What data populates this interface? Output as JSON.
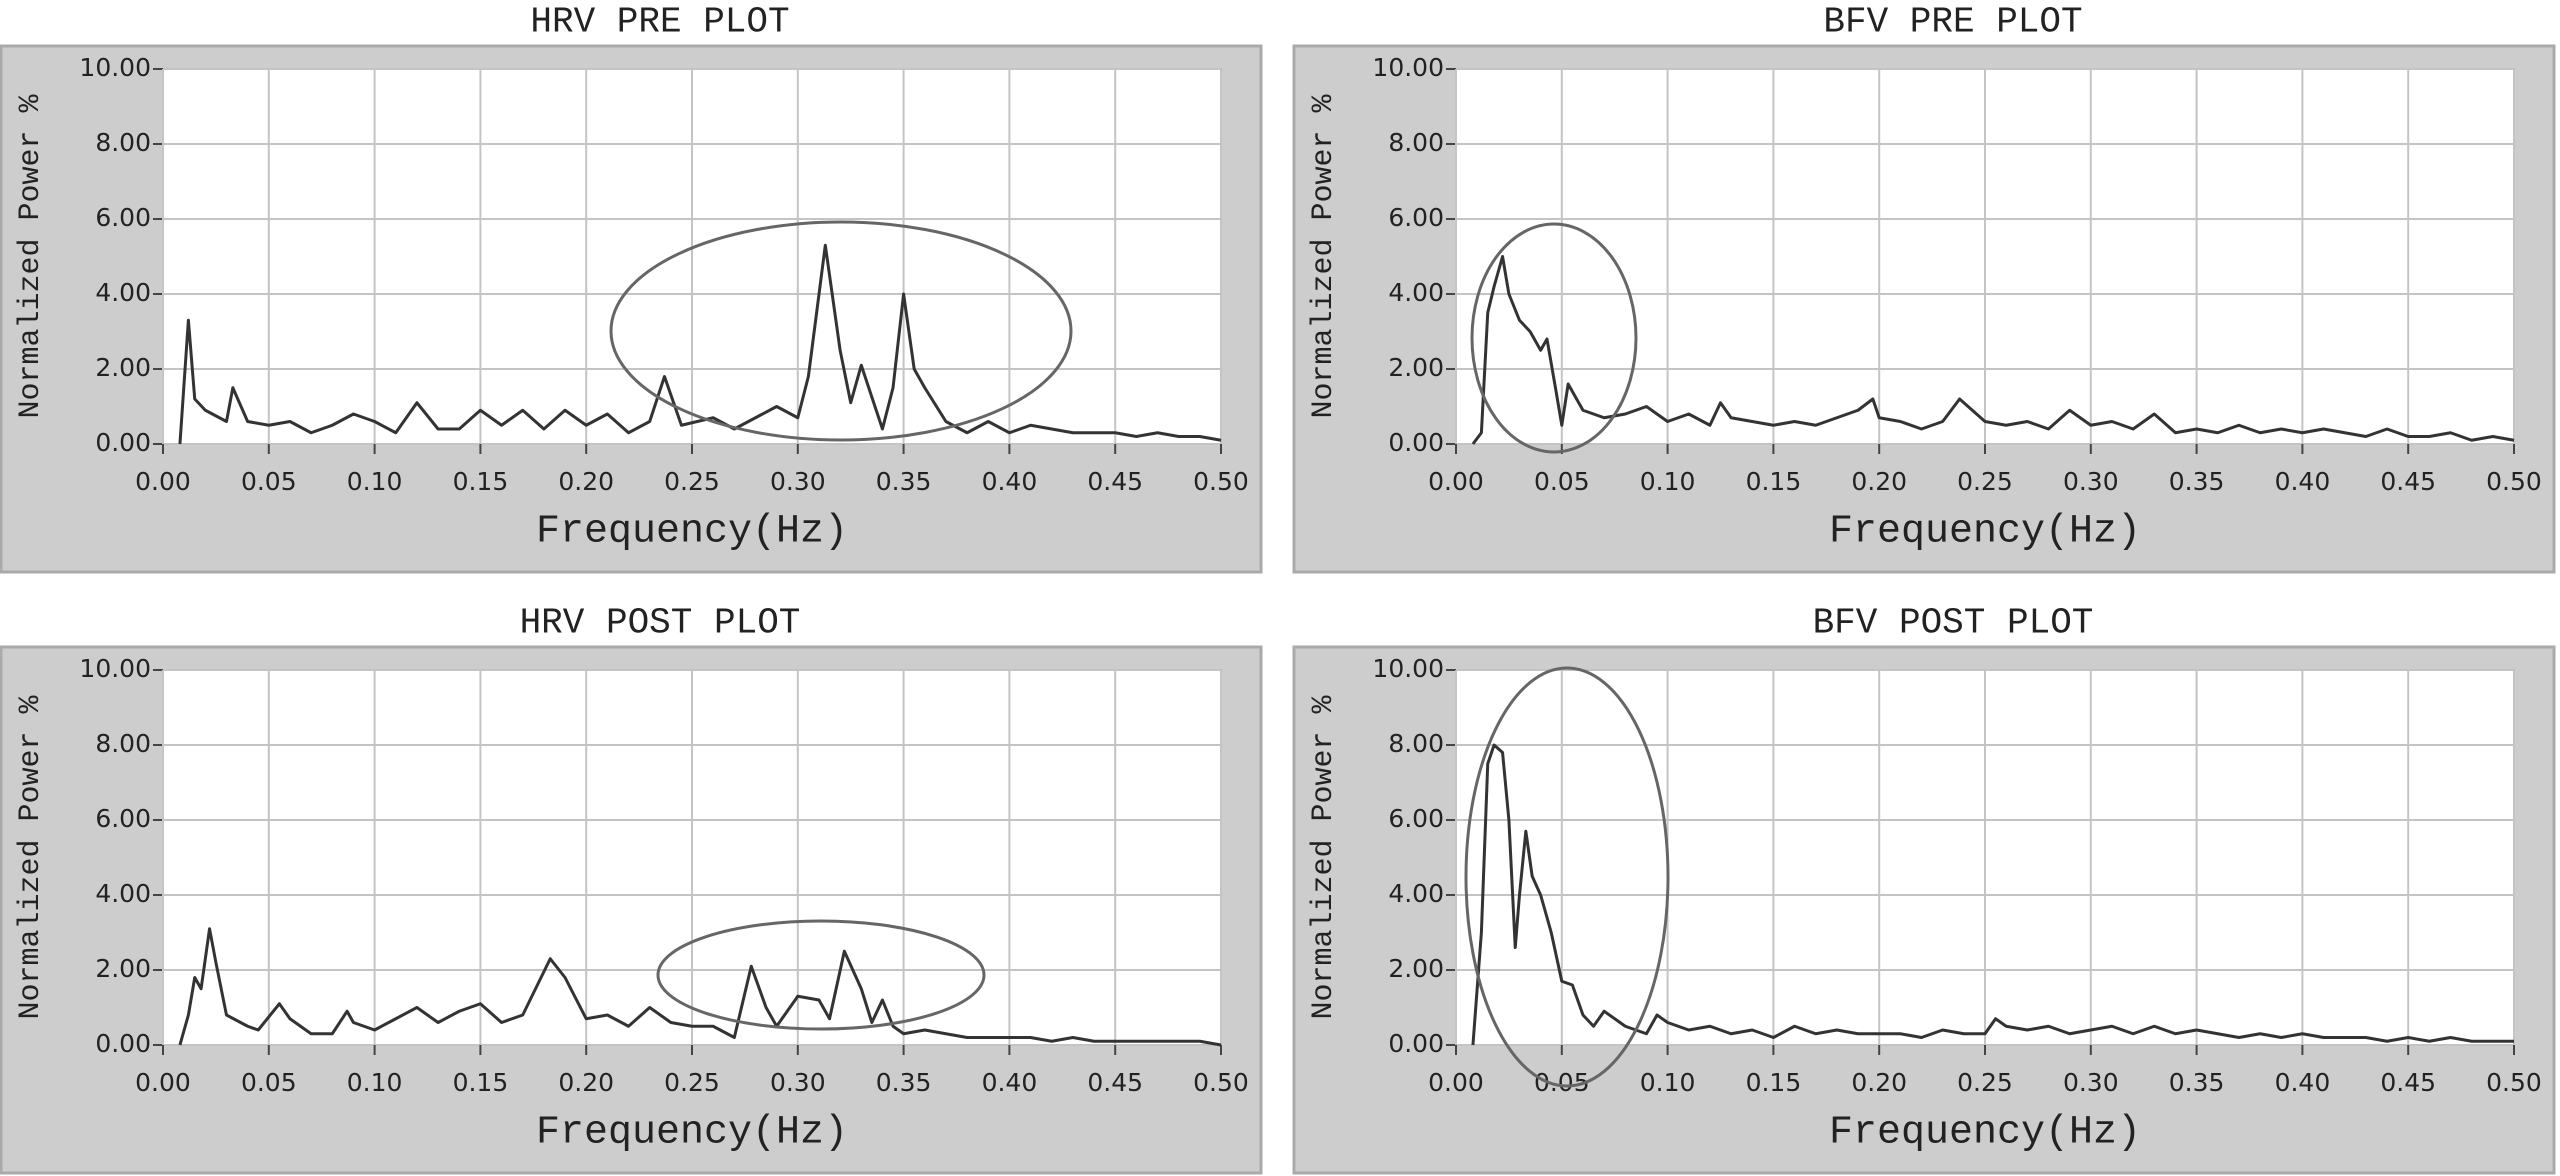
{
  "chart_data": [
    {
      "type": "line",
      "title": "HRV PRE PLOT",
      "x_label": "Frequency(Hz)",
      "y_label": "Normalized Power %",
      "color": "#333333",
      "grid": true,
      "xlim": [
        0,
        0.5
      ],
      "ylim": [
        0,
        10
      ],
      "xticks": [
        {
          "value": 0,
          "label": "0.00"
        },
        {
          "value": 0.05,
          "label": "0.05"
        },
        {
          "value": 0.1,
          "label": "0.10"
        },
        {
          "value": 0.15,
          "label": "0.15"
        },
        {
          "value": 0.2,
          "label": "0.20"
        },
        {
          "value": 0.25,
          "label": "0.25"
        },
        {
          "value": 0.3,
          "label": "0.30"
        },
        {
          "value": 0.35,
          "label": "0.35"
        },
        {
          "value": 0.4,
          "label": "0.40"
        },
        {
          "value": 0.45,
          "label": "0.45"
        },
        {
          "value": 0.5,
          "label": "0.50"
        }
      ],
      "yticks": [
        {
          "value": 0,
          "label": "0.00"
        },
        {
          "value": 2,
          "label": "2.00"
        },
        {
          "value": 4,
          "label": "4.00"
        },
        {
          "value": 6,
          "label": "6.00"
        },
        {
          "value": 8,
          "label": "8.00"
        },
        {
          "value": 10,
          "label": "10.00"
        }
      ],
      "x": [
        0.008,
        0.012,
        0.015,
        0.02,
        0.03,
        0.033,
        0.04,
        0.05,
        0.06,
        0.07,
        0.08,
        0.09,
        0.1,
        0.11,
        0.12,
        0.13,
        0.14,
        0.15,
        0.16,
        0.17,
        0.18,
        0.19,
        0.2,
        0.21,
        0.22,
        0.23,
        0.237,
        0.245,
        0.26,
        0.27,
        0.28,
        0.29,
        0.3,
        0.305,
        0.313,
        0.32,
        0.325,
        0.33,
        0.34,
        0.345,
        0.35,
        0.355,
        0.36,
        0.37,
        0.38,
        0.39,
        0.4,
        0.41,
        0.42,
        0.43,
        0.44,
        0.45,
        0.46,
        0.47,
        0.48,
        0.49,
        0.5
      ],
      "values": [
        0.0,
        3.3,
        1.2,
        0.9,
        0.6,
        1.5,
        0.6,
        0.5,
        0.6,
        0.3,
        0.5,
        0.8,
        0.6,
        0.3,
        1.1,
        0.4,
        0.4,
        0.9,
        0.5,
        0.9,
        0.4,
        0.9,
        0.5,
        0.8,
        0.3,
        0.6,
        1.8,
        0.5,
        0.7,
        0.4,
        0.7,
        1.0,
        0.7,
        1.8,
        5.3,
        2.5,
        1.1,
        2.1,
        0.4,
        1.5,
        4.0,
        2.0,
        1.5,
        0.6,
        0.3,
        0.6,
        0.3,
        0.5,
        0.4,
        0.3,
        0.3,
        0.3,
        0.2,
        0.3,
        0.2,
        0.2,
        0.1
      ]
    },
    {
      "type": "line",
      "title": "BFV PRE PLOT",
      "x_label": "Frequency(Hz)",
      "y_label": "Normalized Power %",
      "color": "#333333",
      "grid": true,
      "xlim": [
        0,
        0.5
      ],
      "ylim": [
        0,
        10
      ],
      "xticks": [
        {
          "value": 0,
          "label": "0.00"
        },
        {
          "value": 0.05,
          "label": "0.05"
        },
        {
          "value": 0.1,
          "label": "0.10"
        },
        {
          "value": 0.15,
          "label": "0.15"
        },
        {
          "value": 0.2,
          "label": "0.20"
        },
        {
          "value": 0.25,
          "label": "0.25"
        },
        {
          "value": 0.3,
          "label": "0.30"
        },
        {
          "value": 0.35,
          "label": "0.35"
        },
        {
          "value": 0.4,
          "label": "0.40"
        },
        {
          "value": 0.45,
          "label": "0.45"
        },
        {
          "value": 0.5,
          "label": "0.50"
        }
      ],
      "yticks": [
        {
          "value": 0,
          "label": "0.00"
        },
        {
          "value": 2,
          "label": "2.00"
        },
        {
          "value": 4,
          "label": "4.00"
        },
        {
          "value": 6,
          "label": "6.00"
        },
        {
          "value": 8,
          "label": "8.00"
        },
        {
          "value": 10,
          "label": "10.00"
        }
      ],
      "x": [
        0.008,
        0.012,
        0.015,
        0.018,
        0.022,
        0.025,
        0.03,
        0.035,
        0.04,
        0.043,
        0.047,
        0.05,
        0.053,
        0.06,
        0.07,
        0.08,
        0.09,
        0.1,
        0.11,
        0.12,
        0.125,
        0.13,
        0.14,
        0.15,
        0.16,
        0.17,
        0.18,
        0.19,
        0.197,
        0.2,
        0.21,
        0.22,
        0.23,
        0.238,
        0.25,
        0.26,
        0.27,
        0.28,
        0.29,
        0.3,
        0.31,
        0.32,
        0.33,
        0.34,
        0.35,
        0.36,
        0.37,
        0.38,
        0.39,
        0.4,
        0.41,
        0.42,
        0.43,
        0.44,
        0.45,
        0.46,
        0.47,
        0.48,
        0.49,
        0.5
      ],
      "values": [
        0.0,
        0.3,
        3.5,
        4.2,
        5.0,
        4.0,
        3.3,
        3.0,
        2.5,
        2.8,
        1.5,
        0.5,
        1.6,
        0.9,
        0.7,
        0.8,
        1.0,
        0.6,
        0.8,
        0.5,
        1.1,
        0.7,
        0.6,
        0.5,
        0.6,
        0.5,
        0.7,
        0.9,
        1.2,
        0.7,
        0.6,
        0.4,
        0.6,
        1.2,
        0.6,
        0.5,
        0.6,
        0.4,
        0.9,
        0.5,
        0.6,
        0.4,
        0.8,
        0.3,
        0.4,
        0.3,
        0.5,
        0.3,
        0.4,
        0.3,
        0.4,
        0.3,
        0.2,
        0.4,
        0.2,
        0.2,
        0.3,
        0.1,
        0.2,
        0.1
      ]
    },
    {
      "type": "line",
      "title": "HRV POST PLOT",
      "x_label": "Frequency(Hz)",
      "y_label": "Normalized Power %",
      "color": "#333333",
      "grid": true,
      "xlim": [
        0,
        0.5
      ],
      "ylim": [
        0,
        10
      ],
      "xticks": [
        {
          "value": 0,
          "label": "0.00"
        },
        {
          "value": 0.05,
          "label": "0.05"
        },
        {
          "value": 0.1,
          "label": "0.10"
        },
        {
          "value": 0.15,
          "label": "0.15"
        },
        {
          "value": 0.2,
          "label": "0.20"
        },
        {
          "value": 0.25,
          "label": "0.25"
        },
        {
          "value": 0.3,
          "label": "0.30"
        },
        {
          "value": 0.35,
          "label": "0.35"
        },
        {
          "value": 0.4,
          "label": "0.40"
        },
        {
          "value": 0.45,
          "label": "0.45"
        },
        {
          "value": 0.5,
          "label": "0.50"
        }
      ],
      "yticks": [
        {
          "value": 0,
          "label": "0.00"
        },
        {
          "value": 2,
          "label": "2.00"
        },
        {
          "value": 4,
          "label": "4.00"
        },
        {
          "value": 6,
          "label": "6.00"
        },
        {
          "value": 8,
          "label": "8.00"
        },
        {
          "value": 10,
          "label": "10.00"
        }
      ],
      "x": [
        0.008,
        0.012,
        0.015,
        0.018,
        0.022,
        0.025,
        0.03,
        0.04,
        0.045,
        0.055,
        0.06,
        0.07,
        0.08,
        0.087,
        0.09,
        0.1,
        0.11,
        0.12,
        0.13,
        0.14,
        0.15,
        0.16,
        0.17,
        0.183,
        0.19,
        0.2,
        0.21,
        0.22,
        0.23,
        0.24,
        0.25,
        0.26,
        0.27,
        0.278,
        0.285,
        0.29,
        0.3,
        0.31,
        0.315,
        0.322,
        0.33,
        0.335,
        0.34,
        0.345,
        0.35,
        0.36,
        0.37,
        0.38,
        0.39,
        0.4,
        0.41,
        0.42,
        0.43,
        0.44,
        0.45,
        0.46,
        0.47,
        0.48,
        0.49,
        0.5
      ],
      "values": [
        0.0,
        0.8,
        1.8,
        1.5,
        3.1,
        2.2,
        0.8,
        0.5,
        0.4,
        1.1,
        0.7,
        0.3,
        0.3,
        0.9,
        0.6,
        0.4,
        0.7,
        1.0,
        0.6,
        0.9,
        1.1,
        0.6,
        0.8,
        2.3,
        1.8,
        0.7,
        0.8,
        0.5,
        1.0,
        0.6,
        0.5,
        0.5,
        0.2,
        2.1,
        1.0,
        0.5,
        1.3,
        1.2,
        0.7,
        2.5,
        1.5,
        0.6,
        1.2,
        0.5,
        0.3,
        0.4,
        0.3,
        0.2,
        0.2,
        0.2,
        0.2,
        0.1,
        0.2,
        0.1,
        0.1,
        0.1,
        0.1,
        0.1,
        0.1,
        0.0
      ]
    },
    {
      "type": "line",
      "title": "BFV POST PLOT",
      "x_label": "Frequency(Hz)",
      "y_label": "Normalized Power %",
      "color": "#333333",
      "grid": true,
      "xlim": [
        0,
        0.5
      ],
      "ylim": [
        0,
        10
      ],
      "xticks": [
        {
          "value": 0,
          "label": "0.00"
        },
        {
          "value": 0.05,
          "label": "0.05"
        },
        {
          "value": 0.1,
          "label": "0.10"
        },
        {
          "value": 0.15,
          "label": "0.15"
        },
        {
          "value": 0.2,
          "label": "0.20"
        },
        {
          "value": 0.25,
          "label": "0.25"
        },
        {
          "value": 0.3,
          "label": "0.30"
        },
        {
          "value": 0.35,
          "label": "0.35"
        },
        {
          "value": 0.4,
          "label": "0.40"
        },
        {
          "value": 0.45,
          "label": "0.45"
        },
        {
          "value": 0.5,
          "label": "0.50"
        }
      ],
      "yticks": [
        {
          "value": 0,
          "label": "0.00"
        },
        {
          "value": 2,
          "label": "2.00"
        },
        {
          "value": 4,
          "label": "4.00"
        },
        {
          "value": 6,
          "label": "6.00"
        },
        {
          "value": 8,
          "label": "8.00"
        },
        {
          "value": 10,
          "label": "10.00"
        }
      ],
      "x": [
        0.008,
        0.012,
        0.015,
        0.018,
        0.022,
        0.025,
        0.028,
        0.03,
        0.033,
        0.036,
        0.04,
        0.045,
        0.05,
        0.055,
        0.06,
        0.065,
        0.07,
        0.08,
        0.09,
        0.095,
        0.1,
        0.11,
        0.12,
        0.13,
        0.14,
        0.15,
        0.16,
        0.17,
        0.18,
        0.19,
        0.2,
        0.21,
        0.22,
        0.23,
        0.24,
        0.25,
        0.255,
        0.26,
        0.27,
        0.28,
        0.29,
        0.3,
        0.31,
        0.32,
        0.33,
        0.34,
        0.35,
        0.36,
        0.37,
        0.38,
        0.39,
        0.4,
        0.41,
        0.42,
        0.43,
        0.44,
        0.45,
        0.46,
        0.47,
        0.48,
        0.49,
        0.5
      ],
      "values": [
        0.0,
        3.0,
        7.5,
        8.0,
        7.8,
        6.0,
        2.6,
        4.0,
        5.7,
        4.5,
        4.0,
        3.0,
        1.7,
        1.6,
        0.8,
        0.5,
        0.9,
        0.5,
        0.3,
        0.8,
        0.6,
        0.4,
        0.5,
        0.3,
        0.4,
        0.2,
        0.5,
        0.3,
        0.4,
        0.3,
        0.3,
        0.3,
        0.2,
        0.4,
        0.3,
        0.3,
        0.7,
        0.5,
        0.4,
        0.5,
        0.3,
        0.4,
        0.5,
        0.3,
        0.5,
        0.3,
        0.4,
        0.3,
        0.2,
        0.3,
        0.2,
        0.3,
        0.2,
        0.2,
        0.2,
        0.1,
        0.2,
        0.1,
        0.2,
        0.1,
        0.1,
        0.1
      ]
    }
  ]
}
